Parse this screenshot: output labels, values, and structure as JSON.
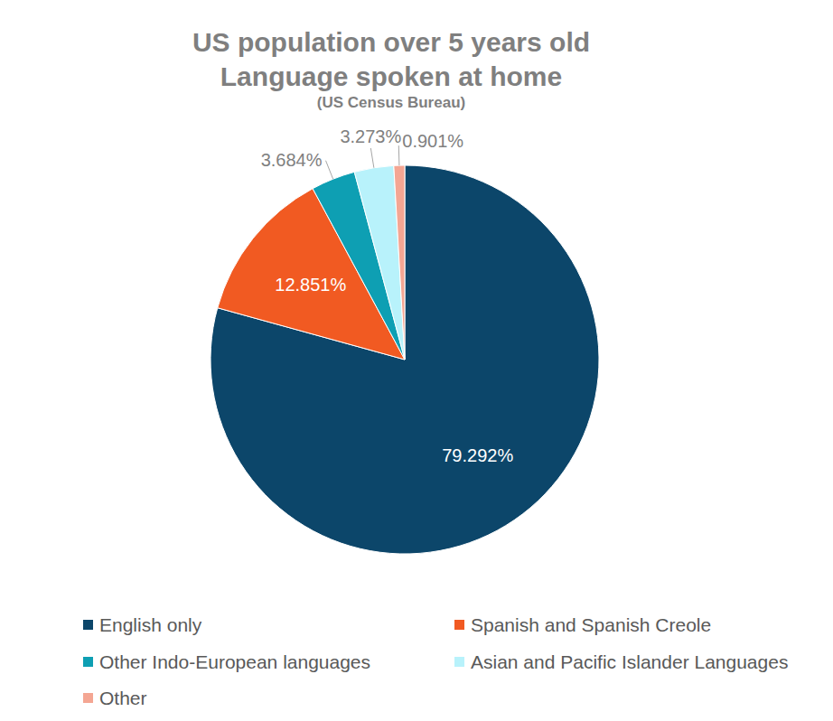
{
  "chart_data": {
    "type": "pie",
    "title": "US population over 5 years old\nLanguage spoken at home",
    "subtitle": "(US Census Bureau)",
    "categories": [
      "English only",
      "Spanish and Spanish Creole",
      "Other Indo-European languages",
      "Asian and Pacific Islander Languages",
      "Other"
    ],
    "values": [
      79.292,
      12.851,
      3.684,
      3.273,
      0.901
    ],
    "value_labels": [
      "79.292%",
      "12.851%",
      "3.684%",
      "3.273%",
      "0.901%"
    ],
    "colors": [
      "#0c466a",
      "#f15a22",
      "#0e9fb3",
      "#b8f2fb",
      "#f4a693"
    ],
    "data_labels": true,
    "legend": "bottom"
  }
}
